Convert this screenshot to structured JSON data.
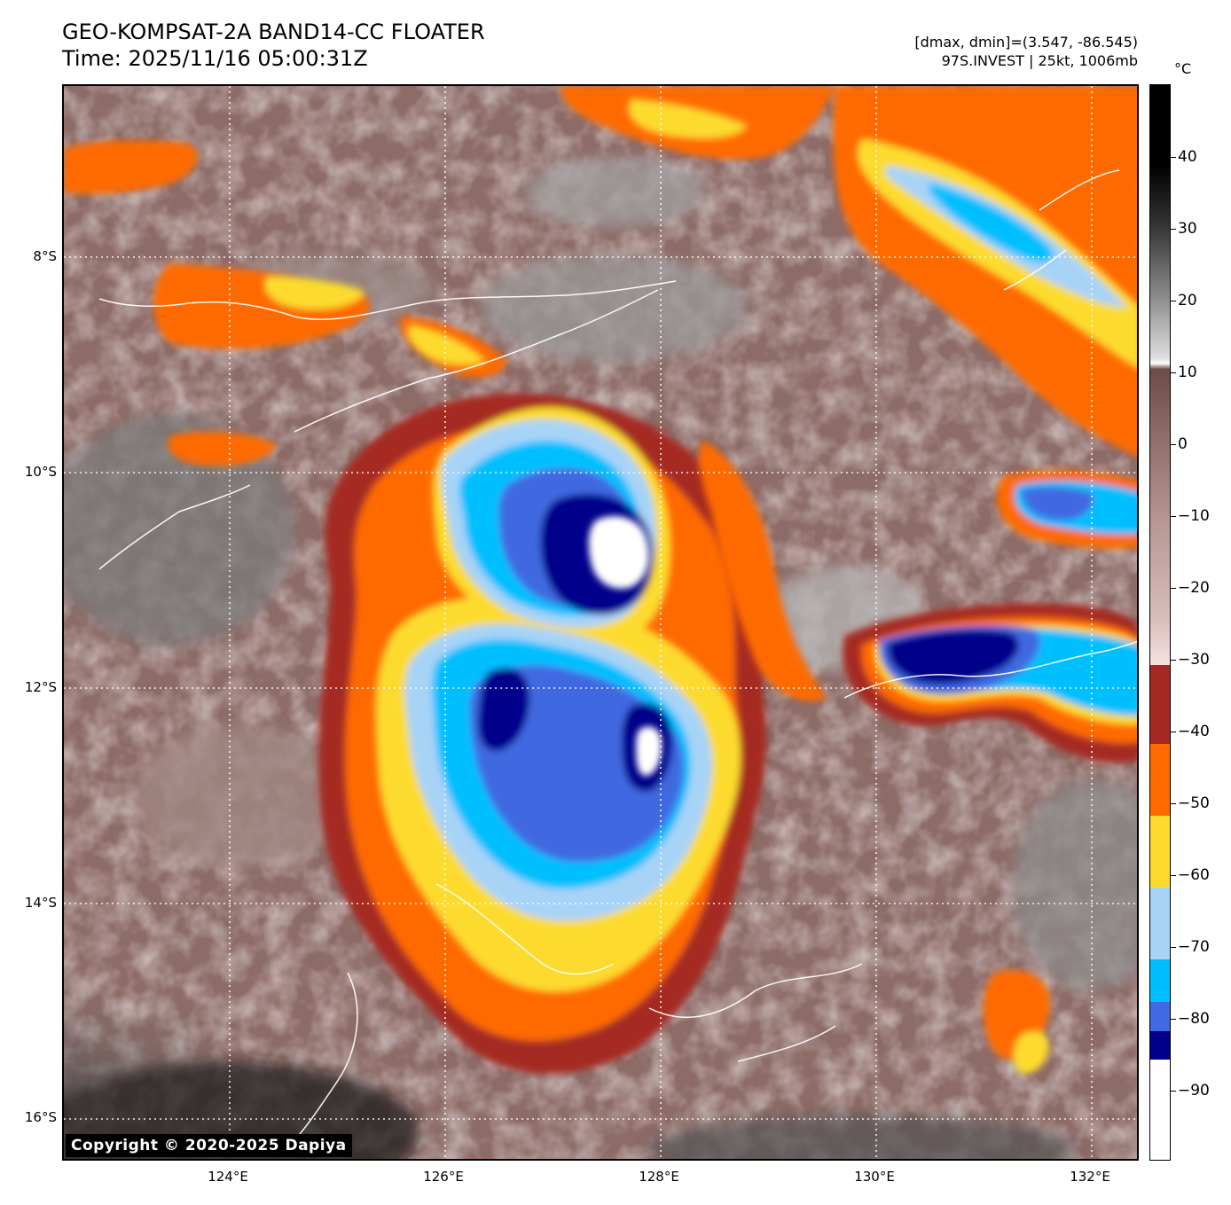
{
  "header": {
    "title_line1": "GEO-KOMPSAT-2A BAND14-CC FLOATER",
    "title_line2": "Time: 2025/11/16 05:00:31Z",
    "info_line1": "[dmax, dmin]=(3.547, -86.545)",
    "info_line2": "97S.INVEST | 25kt, 1006mb"
  },
  "map": {
    "lat_labels": [
      "8°S",
      "10°S",
      "12°S",
      "14°S",
      "16°S"
    ],
    "lon_labels": [
      "124°E",
      "126°E",
      "128°E",
      "130°E",
      "132°E"
    ],
    "copyright": "Copyright © 2020-2025 Dapiya"
  },
  "colorbar": {
    "unit": "°C",
    "tick_labels": [
      "40",
      "30",
      "20",
      "10",
      "0",
      "−10",
      "−20",
      "−30",
      "−40",
      "−50",
      "−60",
      "−70",
      "−80",
      "−90"
    ],
    "bands": [
      {
        "from": -100,
        "to": -86,
        "color": "#ffffff"
      },
      {
        "from": -86,
        "to": -82,
        "color": "#00008b"
      },
      {
        "from": -82,
        "to": -78,
        "color": "#4169e1"
      },
      {
        "from": -78,
        "to": -72,
        "color": "#00bfff"
      },
      {
        "from": -72,
        "to": -62,
        "color": "#a7d3f7"
      },
      {
        "from": -62,
        "to": -52,
        "color": "#fcdb2e"
      },
      {
        "from": -52,
        "to": -42,
        "color": "#ff6a00"
      },
      {
        "from": -42,
        "to": -31,
        "color": "#a52a24"
      }
    ]
  }
}
